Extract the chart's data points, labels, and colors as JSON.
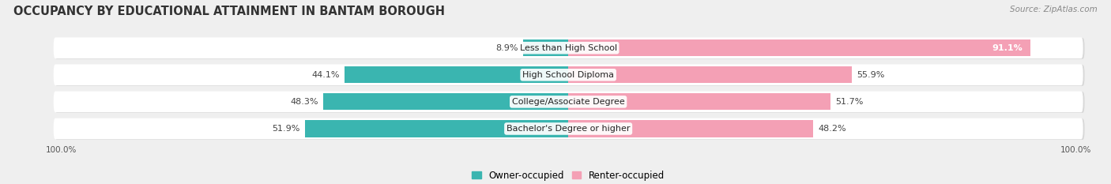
{
  "title": "OCCUPANCY BY EDUCATIONAL ATTAINMENT IN BANTAM BOROUGH",
  "source": "Source: ZipAtlas.com",
  "categories": [
    "Less than High School",
    "High School Diploma",
    "College/Associate Degree",
    "Bachelor's Degree or higher"
  ],
  "owner_values": [
    8.9,
    44.1,
    48.3,
    51.9
  ],
  "renter_values": [
    91.1,
    55.9,
    51.7,
    48.2
  ],
  "owner_color": "#3ab5b0",
  "renter_color": "#f4a0b5",
  "background_color": "#efefef",
  "bar_background": "#ffffff",
  "bar_shadow": "#d8d8d8",
  "title_fontsize": 10.5,
  "source_fontsize": 7.5,
  "label_fontsize": 8,
  "legend_fontsize": 8.5,
  "axis_label_fontsize": 7.5,
  "bar_height": 0.62,
  "x_left_label": "100.0%",
  "x_right_label": "100.0%"
}
